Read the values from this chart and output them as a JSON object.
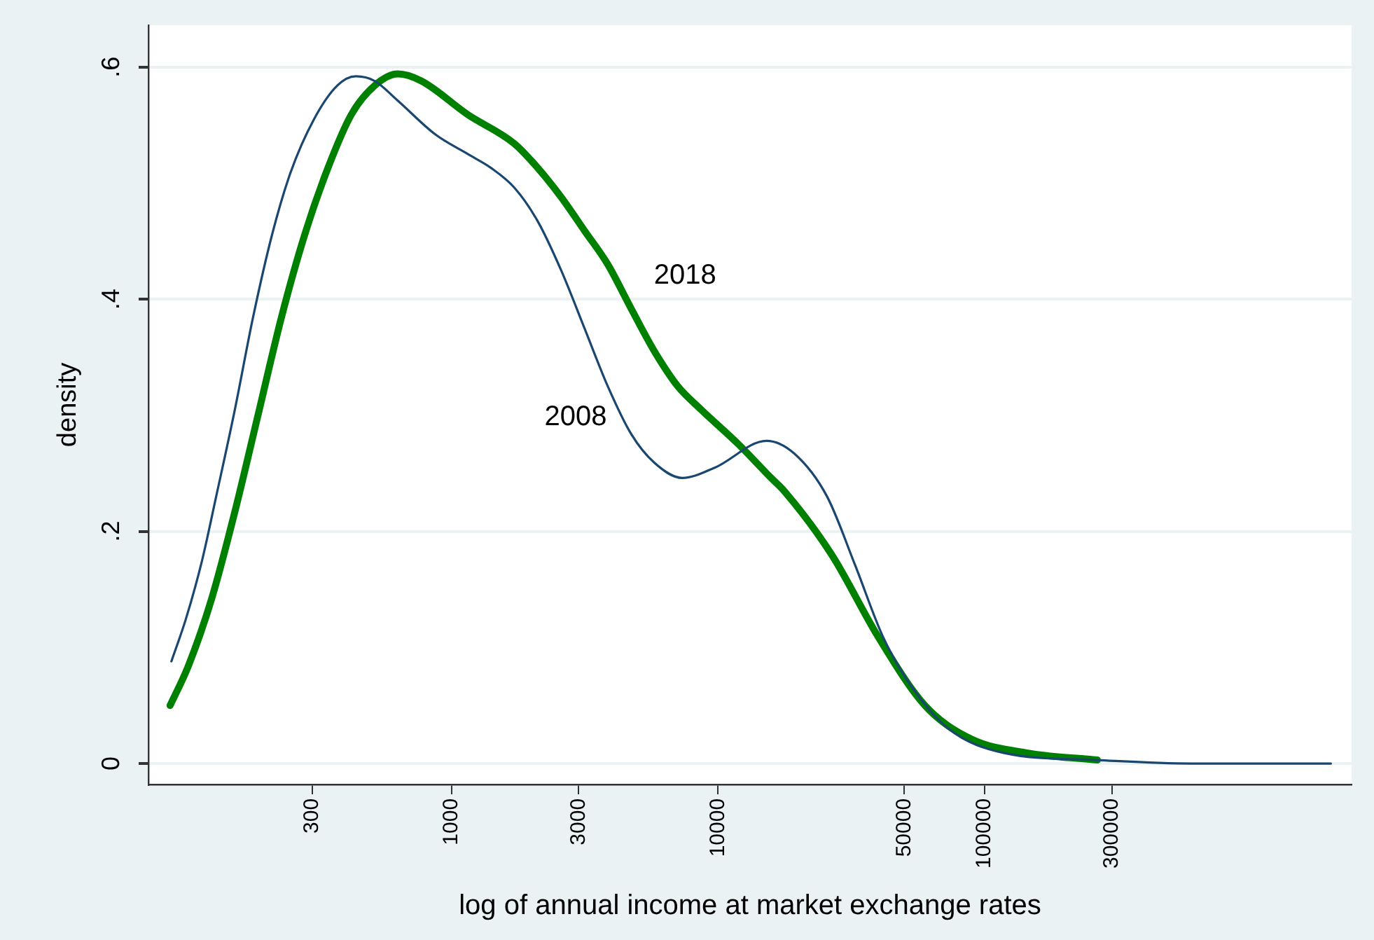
{
  "chart_data": {
    "type": "line",
    "xlabel": "log of annual income at market exchange rates",
    "ylabel": "density",
    "log": "x",
    "xlim": [
      73,
      2380000
    ],
    "ylim": [
      -0.018,
      0.636
    ],
    "xticks": [
      300,
      1000,
      3000,
      10000,
      50000,
      100000,
      300000
    ],
    "yticks": [
      {
        "value": 0,
        "label": "0"
      },
      {
        "value": 0.2,
        "label": ".2"
      },
      {
        "value": 0.4,
        "label": ".4"
      },
      {
        "value": 0.6,
        "label": ".6"
      }
    ],
    "grid": "y",
    "legend": false,
    "marker": "none",
    "line_style": "solid",
    "series": [
      {
        "color": "#1a476f",
        "x": [
          89,
          101,
          116,
          131,
          154,
          180,
          212,
          249,
          305,
          373,
          438,
          515,
          629,
          869,
          1151,
          1409,
          1722,
          2108,
          2577,
          3155,
          3857,
          4718,
          5775,
          7345,
          9750,
          15190,
          19320,
          25640,
          32660,
          41590,
          52970,
          73110,
          118600,
          264900,
          594000,
          1990000
        ],
        "values": [
          0.088,
          0.125,
          0.175,
          0.23,
          0.305,
          0.384,
          0.455,
          0.509,
          0.555,
          0.584,
          0.592,
          0.588,
          0.571,
          0.542,
          0.525,
          0.513,
          0.496,
          0.467,
          0.425,
          0.375,
          0.325,
          0.284,
          0.259,
          0.246,
          0.255,
          0.278,
          0.267,
          0.23,
          0.171,
          0.109,
          0.067,
          0.03,
          0.009,
          0.003,
          0,
          0
        ]
      },
      {
        "color": "#008000",
        "x": [
          88,
          103,
          126,
          154,
          188,
          230,
          281,
          344,
          421,
          515,
          629,
          770,
          1151,
          1722,
          2108,
          2577,
          3155,
          3857,
          4718,
          5775,
          7060,
          8630,
          11930,
          15810,
          17820,
          26670,
          39910,
          59700,
          89300,
          144900,
          264900
        ],
        "values": [
          0.05,
          0.084,
          0.142,
          0.217,
          0.3,
          0.384,
          0.455,
          0.513,
          0.559,
          0.584,
          0.594,
          0.588,
          0.559,
          0.534,
          0.513,
          0.488,
          0.459,
          0.43,
          0.392,
          0.355,
          0.325,
          0.305,
          0.275,
          0.246,
          0.234,
          0.18,
          0.109,
          0.05,
          0.021,
          0.009,
          0.003
        ]
      }
    ],
    "annotations": [
      "2008",
      "2018"
    ]
  }
}
